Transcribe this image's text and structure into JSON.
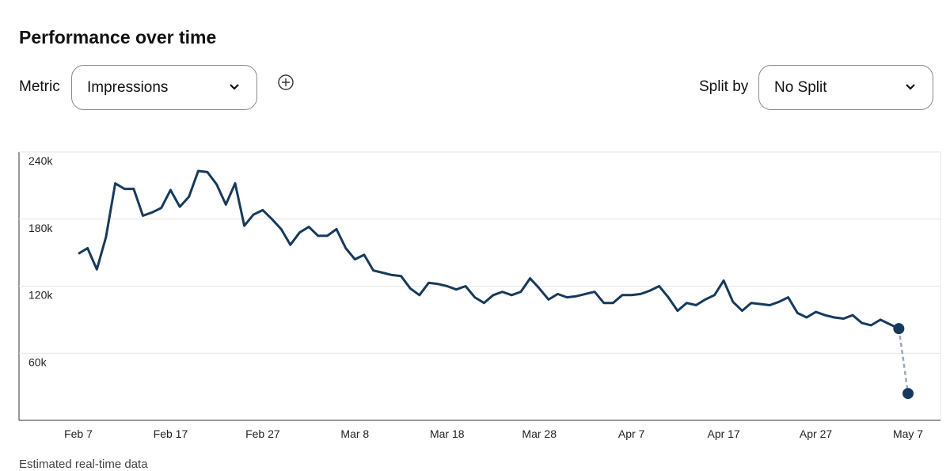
{
  "header": {
    "title": "Performance over time"
  },
  "controls": {
    "metric_label": "Metric",
    "metric_value": "Impressions",
    "split_label": "Split by",
    "split_value": "No Split"
  },
  "chart_data": {
    "type": "line",
    "categories": [
      "Feb 7",
      null,
      null,
      null,
      null,
      null,
      null,
      null,
      null,
      null,
      "Feb 17",
      null,
      null,
      null,
      null,
      null,
      null,
      null,
      null,
      null,
      "Feb 27",
      null,
      null,
      null,
      null,
      null,
      null,
      null,
      null,
      null,
      "Mar 8",
      null,
      null,
      null,
      null,
      null,
      null,
      null,
      null,
      null,
      "Mar 18",
      null,
      null,
      null,
      null,
      null,
      null,
      null,
      null,
      null,
      "Mar 28",
      null,
      null,
      null,
      null,
      null,
      null,
      null,
      null,
      null,
      "Apr 7",
      null,
      null,
      null,
      null,
      null,
      null,
      null,
      null,
      null,
      "Apr 17",
      null,
      null,
      null,
      null,
      null,
      null,
      null,
      null,
      null,
      "Apr 27",
      null,
      null,
      null,
      null,
      null,
      null,
      null,
      null,
      null,
      "May 7"
    ],
    "series": [
      {
        "color": "#173a5c",
        "dash": false,
        "values": [
          149000,
          154000,
          135000,
          164000,
          212000,
          207000,
          207000,
          183000,
          186000,
          190000,
          206000,
          191000,
          200000,
          223000,
          222000,
          211000,
          193000,
          212000,
          174000,
          184000,
          188000,
          180000,
          171000,
          157000,
          168000,
          173000,
          165000,
          165000,
          171000,
          154000,
          144000,
          148000,
          134000,
          132000,
          130000,
          129000,
          118000,
          112000,
          123000,
          122000,
          120000,
          117000,
          120000,
          110000,
          105000,
          112000,
          115000,
          112000,
          115000,
          127000,
          118000,
          108000,
          113000,
          110000,
          111000,
          113000,
          115000,
          105000,
          105000,
          112000,
          112000,
          113000,
          116000,
          120000,
          110000,
          98000,
          105000,
          103000,
          108000,
          112000,
          125000,
          106000,
          98000,
          105000,
          104000,
          103000,
          106000,
          110000,
          96000,
          92000,
          97000,
          94000,
          92000,
          91000,
          94000,
          87000,
          85000,
          90000,
          86000,
          82000,
          null
        ]
      },
      {
        "color": "#9aa8b8",
        "dash": true,
        "marker_color": "#173a5c",
        "values": [
          null,
          null,
          null,
          null,
          null,
          null,
          null,
          null,
          null,
          null,
          null,
          null,
          null,
          null,
          null,
          null,
          null,
          null,
          null,
          null,
          null,
          null,
          null,
          null,
          null,
          null,
          null,
          null,
          null,
          null,
          null,
          null,
          null,
          null,
          null,
          null,
          null,
          null,
          null,
          null,
          null,
          null,
          null,
          null,
          null,
          null,
          null,
          null,
          null,
          null,
          null,
          null,
          null,
          null,
          null,
          null,
          null,
          null,
          null,
          null,
          null,
          null,
          null,
          null,
          null,
          null,
          null,
          null,
          null,
          null,
          null,
          null,
          null,
          null,
          null,
          null,
          null,
          null,
          null,
          null,
          null,
          null,
          null,
          null,
          null,
          null,
          null,
          null,
          null,
          82000,
          24000
        ]
      }
    ],
    "ylim": [
      0,
      240000
    ],
    "yticks": [
      {
        "value": 60000,
        "label": "60k"
      },
      {
        "value": 120000,
        "label": "120k"
      },
      {
        "value": 180000,
        "label": "180k"
      },
      {
        "value": 240000,
        "label": "240k"
      }
    ],
    "grid": true
  },
  "footer": {
    "note": "Estimated real-time data"
  }
}
